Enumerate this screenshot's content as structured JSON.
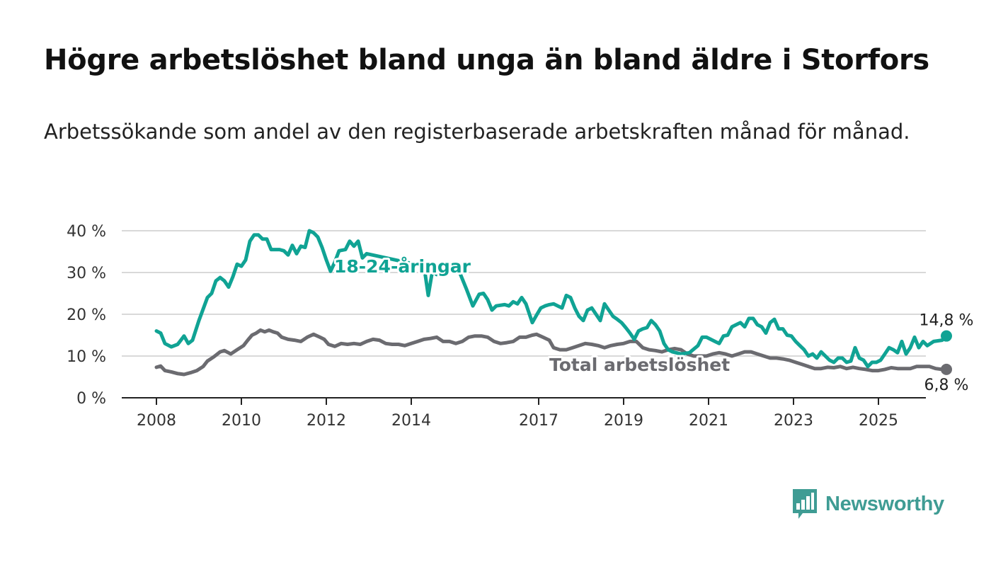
{
  "page": {
    "title": "Högre arbetslöshet bland unga än bland äldre i Storfors",
    "subtitle": "Arbetssökande som andel av den registerbaserade arbetskraften månad för månad."
  },
  "brand": {
    "name": "Newsworthy",
    "icon": "newsworthy-logo-icon",
    "color": "#3f9c94"
  },
  "colors": {
    "youth": "#10a394",
    "total": "#6b6b70",
    "grid": "#d9d9d9",
    "axis": "#222222"
  },
  "chart_data": {
    "type": "line",
    "title": "Högre arbetslöshet bland unga än bland äldre i Storfors",
    "subtitle": "Arbetssökande som andel av den registerbaserade arbetskraften månad för månad.",
    "ylim": [
      0,
      40
    ],
    "y_ticks": [
      0,
      10,
      20,
      30,
      40
    ],
    "y_tick_labels": [
      "0 %",
      "10 %",
      "20 %",
      "30 %",
      "40 %"
    ],
    "x_ticks": [
      2008,
      2010,
      2012,
      2014,
      2017,
      2019,
      2021,
      2023,
      2025
    ],
    "x_tick_labels": [
      "2008",
      "2010",
      "2012",
      "2014",
      "2017",
      "2019",
      "2021",
      "2023",
      "2025"
    ],
    "grid": true,
    "series": [
      {
        "name": "18-24-åringar",
        "color": "#10a394",
        "end_label": "14,8 %",
        "points": [
          [
            2008.0,
            16.0
          ],
          [
            2008.1,
            15.5
          ],
          [
            2008.2,
            13.0
          ],
          [
            2008.35,
            12.2
          ],
          [
            2008.5,
            12.8
          ],
          [
            2008.65,
            14.8
          ],
          [
            2008.75,
            13.0
          ],
          [
            2008.85,
            13.8
          ],
          [
            2009.0,
            18.5
          ],
          [
            2009.2,
            24.0
          ],
          [
            2009.3,
            25.0
          ],
          [
            2009.4,
            28.0
          ],
          [
            2009.5,
            28.8
          ],
          [
            2009.6,
            28.0
          ],
          [
            2009.7,
            26.5
          ],
          [
            2009.8,
            29.0
          ],
          [
            2009.9,
            32.0
          ],
          [
            2010.0,
            31.5
          ],
          [
            2010.1,
            33.0
          ],
          [
            2010.2,
            37.5
          ],
          [
            2010.3,
            39.0
          ],
          [
            2010.4,
            39.0
          ],
          [
            2010.5,
            38.0
          ],
          [
            2010.6,
            38.0
          ],
          [
            2010.7,
            35.5
          ],
          [
            2010.9,
            35.5
          ],
          [
            2011.0,
            35.2
          ],
          [
            2011.1,
            34.2
          ],
          [
            2011.2,
            36.5
          ],
          [
            2011.3,
            34.5
          ],
          [
            2011.4,
            36.3
          ],
          [
            2011.5,
            36.0
          ],
          [
            2011.6,
            40.0
          ],
          [
            2011.7,
            39.5
          ],
          [
            2011.8,
            38.5
          ],
          [
            2011.9,
            36.0
          ],
          [
            2012.0,
            33.0
          ],
          [
            2012.1,
            30.3
          ],
          [
            2012.2,
            32.5
          ],
          [
            2012.3,
            35.2
          ],
          [
            2012.45,
            35.5
          ],
          [
            2012.55,
            37.5
          ],
          [
            2012.65,
            36.3
          ],
          [
            2012.75,
            37.5
          ],
          [
            2012.85,
            33.5
          ],
          [
            2012.95,
            34.5
          ],
          [
            2014.3,
            31.5
          ],
          [
            2014.4,
            24.5
          ],
          [
            2014.5,
            30.5
          ],
          [
            2014.6,
            29.5
          ],
          [
            2015.1,
            31.0
          ],
          [
            2015.3,
            26.0
          ],
          [
            2015.45,
            22.0
          ],
          [
            2015.6,
            24.8
          ],
          [
            2015.7,
            25.0
          ],
          [
            2015.8,
            23.5
          ],
          [
            2015.9,
            21.0
          ],
          [
            2016.0,
            22.0
          ],
          [
            2016.2,
            22.3
          ],
          [
            2016.3,
            22.0
          ],
          [
            2016.4,
            23.0
          ],
          [
            2016.5,
            22.5
          ],
          [
            2016.6,
            24.0
          ],
          [
            2016.7,
            22.5
          ],
          [
            2016.85,
            18.0
          ],
          [
            2016.95,
            19.8
          ],
          [
            2017.05,
            21.5
          ],
          [
            2017.15,
            22.0
          ],
          [
            2017.25,
            22.3
          ],
          [
            2017.35,
            22.5
          ],
          [
            2017.45,
            22.0
          ],
          [
            2017.55,
            21.5
          ],
          [
            2017.65,
            24.5
          ],
          [
            2017.75,
            24.0
          ],
          [
            2017.85,
            21.5
          ],
          [
            2017.95,
            19.5
          ],
          [
            2018.05,
            18.5
          ],
          [
            2018.15,
            21.0
          ],
          [
            2018.25,
            21.5
          ],
          [
            2018.35,
            20.0
          ],
          [
            2018.45,
            18.5
          ],
          [
            2018.55,
            22.5
          ],
          [
            2018.65,
            21.0
          ],
          [
            2018.75,
            19.5
          ],
          [
            2018.85,
            18.8
          ],
          [
            2018.95,
            18.0
          ],
          [
            2019.05,
            16.8
          ],
          [
            2019.15,
            15.5
          ],
          [
            2019.25,
            14.0
          ],
          [
            2019.35,
            16.0
          ],
          [
            2019.45,
            16.5
          ],
          [
            2019.55,
            16.8
          ],
          [
            2019.65,
            18.5
          ],
          [
            2019.75,
            17.5
          ],
          [
            2019.85,
            16.0
          ],
          [
            2019.95,
            13.0
          ],
          [
            2020.05,
            11.5
          ],
          [
            2020.15,
            11.0
          ],
          [
            2020.35,
            10.5
          ],
          [
            2020.55,
            10.8
          ],
          [
            2020.75,
            12.5
          ],
          [
            2020.85,
            14.5
          ],
          [
            2020.95,
            14.5
          ],
          [
            2021.05,
            14.0
          ],
          [
            2021.15,
            13.5
          ],
          [
            2021.25,
            13.0
          ],
          [
            2021.35,
            14.8
          ],
          [
            2021.45,
            15.0
          ],
          [
            2021.55,
            17.0
          ],
          [
            2021.65,
            17.5
          ],
          [
            2021.75,
            18.0
          ],
          [
            2021.85,
            17.0
          ],
          [
            2021.95,
            19.0
          ],
          [
            2022.05,
            19.0
          ],
          [
            2022.15,
            17.5
          ],
          [
            2022.25,
            17.0
          ],
          [
            2022.35,
            15.5
          ],
          [
            2022.45,
            18.0
          ],
          [
            2022.55,
            18.8
          ],
          [
            2022.65,
            16.5
          ],
          [
            2022.75,
            16.5
          ],
          [
            2022.85,
            15.0
          ],
          [
            2022.95,
            14.8
          ],
          [
            2023.05,
            13.5
          ],
          [
            2023.15,
            12.5
          ],
          [
            2023.25,
            11.5
          ],
          [
            2023.35,
            10.0
          ],
          [
            2023.45,
            10.5
          ],
          [
            2023.55,
            9.5
          ],
          [
            2023.65,
            11.0
          ],
          [
            2023.75,
            10.0
          ],
          [
            2023.85,
            9.0
          ],
          [
            2023.95,
            8.5
          ],
          [
            2024.05,
            9.5
          ],
          [
            2024.15,
            9.5
          ],
          [
            2024.25,
            8.5
          ],
          [
            2024.35,
            8.8
          ],
          [
            2024.45,
            12.0
          ],
          [
            2024.55,
            9.5
          ],
          [
            2024.65,
            9.0
          ],
          [
            2024.75,
            7.5
          ],
          [
            2024.85,
            8.5
          ],
          [
            2024.95,
            8.5
          ],
          [
            2025.05,
            9.0
          ],
          [
            2025.15,
            10.5
          ],
          [
            2025.25,
            12.0
          ],
          [
            2025.35,
            11.5
          ],
          [
            2025.45,
            10.8
          ],
          [
            2025.55,
            13.5
          ],
          [
            2025.65,
            10.5
          ],
          [
            2025.75,
            12.0
          ],
          [
            2025.85,
            14.5
          ],
          [
            2025.95,
            12.0
          ],
          [
            2026.05,
            13.5
          ],
          [
            2026.15,
            12.5
          ],
          [
            2026.3,
            13.5
          ],
          [
            2026.5,
            13.8
          ],
          [
            2026.6,
            14.8
          ]
        ]
      },
      {
        "name": "Total arbetslöshet",
        "color": "#6b6b70",
        "end_label": "6,8 %",
        "points": [
          [
            2008.0,
            7.3
          ],
          [
            2008.1,
            7.6
          ],
          [
            2008.2,
            6.5
          ],
          [
            2008.35,
            6.2
          ],
          [
            2008.5,
            5.8
          ],
          [
            2008.65,
            5.6
          ],
          [
            2008.8,
            6.0
          ],
          [
            2008.95,
            6.5
          ],
          [
            2009.1,
            7.5
          ],
          [
            2009.2,
            8.8
          ],
          [
            2009.35,
            9.8
          ],
          [
            2009.5,
            11.0
          ],
          [
            2009.6,
            11.3
          ],
          [
            2009.75,
            10.5
          ],
          [
            2009.9,
            11.5
          ],
          [
            2010.05,
            12.5
          ],
          [
            2010.15,
            13.8
          ],
          [
            2010.25,
            15.0
          ],
          [
            2010.35,
            15.5
          ],
          [
            2010.45,
            16.2
          ],
          [
            2010.55,
            15.8
          ],
          [
            2010.65,
            16.2
          ],
          [
            2010.75,
            15.8
          ],
          [
            2010.85,
            15.5
          ],
          [
            2010.95,
            14.5
          ],
          [
            2011.1,
            14.0
          ],
          [
            2011.25,
            13.8
          ],
          [
            2011.4,
            13.5
          ],
          [
            2011.55,
            14.5
          ],
          [
            2011.7,
            15.2
          ],
          [
            2011.85,
            14.5
          ],
          [
            2011.95,
            14.0
          ],
          [
            2012.05,
            12.8
          ],
          [
            2012.2,
            12.3
          ],
          [
            2012.35,
            13.0
          ],
          [
            2012.5,
            12.8
          ],
          [
            2012.65,
            13.0
          ],
          [
            2012.8,
            12.8
          ],
          [
            2012.95,
            13.5
          ],
          [
            2013.1,
            14.0
          ],
          [
            2013.25,
            13.8
          ],
          [
            2013.4,
            13.0
          ],
          [
            2013.55,
            12.8
          ],
          [
            2013.7,
            12.8
          ],
          [
            2013.85,
            12.5
          ],
          [
            2014.0,
            13.0
          ],
          [
            2014.15,
            13.5
          ],
          [
            2014.3,
            14.0
          ],
          [
            2014.45,
            14.2
          ],
          [
            2014.6,
            14.5
          ],
          [
            2014.75,
            13.5
          ],
          [
            2014.9,
            13.5
          ],
          [
            2015.05,
            13.0
          ],
          [
            2015.2,
            13.5
          ],
          [
            2015.35,
            14.5
          ],
          [
            2015.5,
            14.8
          ],
          [
            2015.65,
            14.8
          ],
          [
            2015.8,
            14.5
          ],
          [
            2015.95,
            13.5
          ],
          [
            2016.1,
            13.0
          ],
          [
            2016.25,
            13.2
          ],
          [
            2016.4,
            13.5
          ],
          [
            2016.55,
            14.5
          ],
          [
            2016.7,
            14.5
          ],
          [
            2016.85,
            15.0
          ],
          [
            2016.95,
            15.2
          ],
          [
            2017.1,
            14.5
          ],
          [
            2017.25,
            13.8
          ],
          [
            2017.35,
            12.0
          ],
          [
            2017.5,
            11.5
          ],
          [
            2017.65,
            11.5
          ],
          [
            2017.8,
            12.0
          ],
          [
            2017.95,
            12.5
          ],
          [
            2018.1,
            13.0
          ],
          [
            2018.25,
            12.8
          ],
          [
            2018.4,
            12.5
          ],
          [
            2018.55,
            12.0
          ],
          [
            2018.7,
            12.5
          ],
          [
            2018.85,
            12.8
          ],
          [
            2019.0,
            13.0
          ],
          [
            2019.15,
            13.5
          ],
          [
            2019.3,
            13.5
          ],
          [
            2019.45,
            12.0
          ],
          [
            2019.6,
            11.5
          ],
          [
            2019.75,
            11.3
          ],
          [
            2019.9,
            11.0
          ],
          [
            2020.05,
            11.5
          ],
          [
            2020.2,
            11.8
          ],
          [
            2020.35,
            11.5
          ],
          [
            2020.5,
            10.5
          ],
          [
            2020.65,
            10.0
          ],
          [
            2020.8,
            10.0
          ],
          [
            2020.95,
            10.0
          ],
          [
            2021.1,
            10.5
          ],
          [
            2021.25,
            10.8
          ],
          [
            2021.4,
            10.5
          ],
          [
            2021.55,
            10.0
          ],
          [
            2021.7,
            10.5
          ],
          [
            2021.85,
            11.0
          ],
          [
            2022.0,
            11.0
          ],
          [
            2022.15,
            10.5
          ],
          [
            2022.3,
            10.0
          ],
          [
            2022.45,
            9.5
          ],
          [
            2022.6,
            9.5
          ],
          [
            2022.75,
            9.3
          ],
          [
            2022.9,
            9.0
          ],
          [
            2023.05,
            8.5
          ],
          [
            2023.2,
            8.0
          ],
          [
            2023.35,
            7.5
          ],
          [
            2023.5,
            7.0
          ],
          [
            2023.65,
            7.0
          ],
          [
            2023.8,
            7.3
          ],
          [
            2023.95,
            7.2
          ],
          [
            2024.1,
            7.5
          ],
          [
            2024.25,
            7.0
          ],
          [
            2024.4,
            7.3
          ],
          [
            2024.55,
            7.0
          ],
          [
            2024.7,
            6.8
          ],
          [
            2024.85,
            6.5
          ],
          [
            2025.0,
            6.5
          ],
          [
            2025.15,
            6.8
          ],
          [
            2025.3,
            7.2
          ],
          [
            2025.45,
            7.0
          ],
          [
            2025.6,
            7.0
          ],
          [
            2025.75,
            7.0
          ],
          [
            2025.9,
            7.5
          ],
          [
            2026.05,
            7.5
          ],
          [
            2026.2,
            7.5
          ],
          [
            2026.35,
            7.0
          ],
          [
            2026.5,
            6.8
          ],
          [
            2026.6,
            6.8
          ]
        ]
      }
    ]
  }
}
